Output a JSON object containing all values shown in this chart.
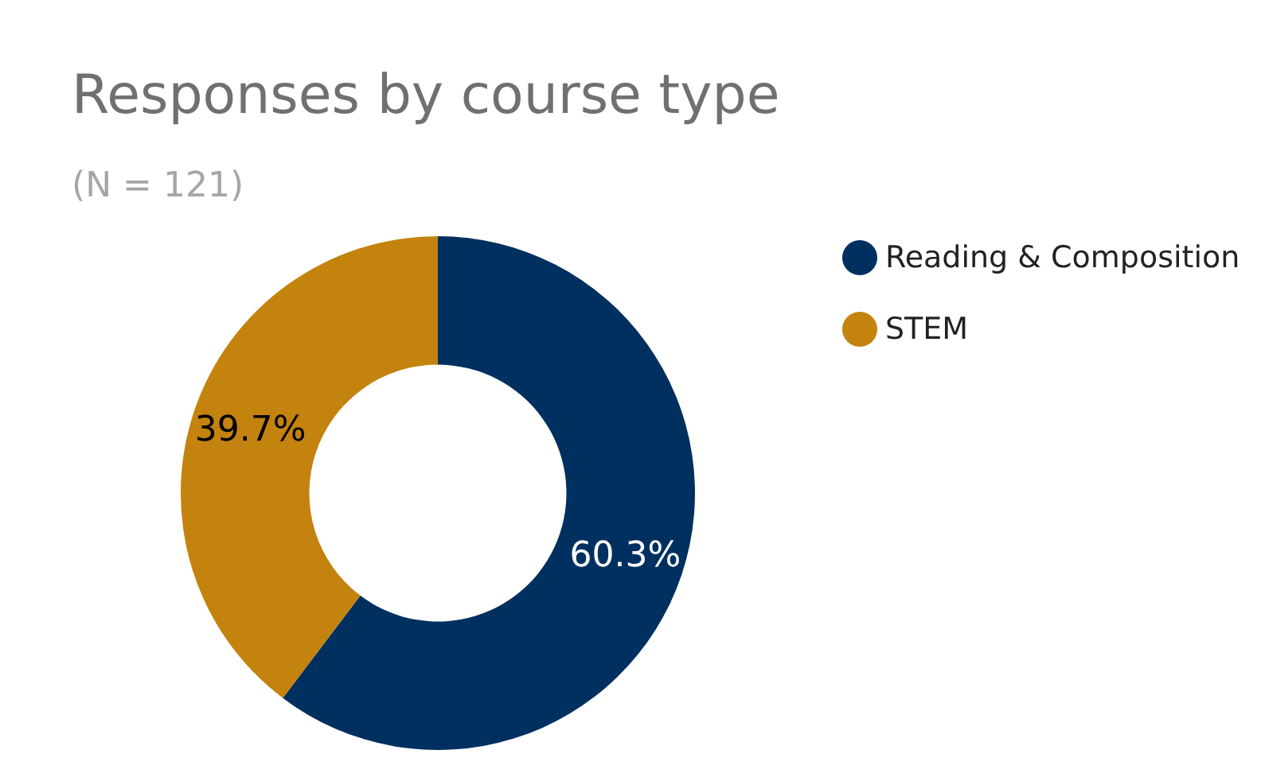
{
  "chart_data": {
    "type": "donut",
    "title": "Responses by course type",
    "subtitle": "(N = 121)",
    "categories": [
      "Reading & Composition",
      "STEM"
    ],
    "values": [
      60.3,
      39.7
    ],
    "colors": [
      "#00305f",
      "#c4820f"
    ],
    "value_labels": [
      "60.3%",
      "39.7%"
    ],
    "legend": "right"
  }
}
